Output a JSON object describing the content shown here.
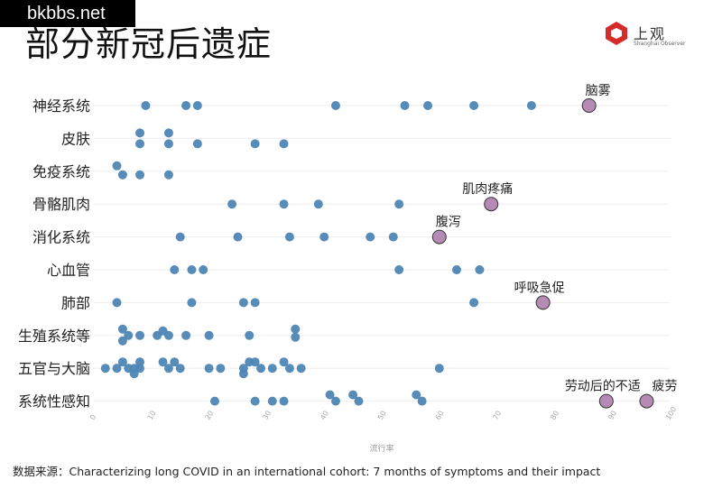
{
  "watermark": "bkbbs.net",
  "title": "部分新冠后遗症",
  "logo": {
    "name": "上观",
    "sub": "Shanghai Observer"
  },
  "source": "数据来源：Characterizing long COVID in an international cohort: 7 months of symptoms and their impact",
  "colors": {
    "point": "#4e86b5",
    "highlight": "#b58ab5",
    "grid": "#eeeeee",
    "logo_red": "#d52b2b"
  },
  "chart_data": {
    "type": "scatter",
    "xlabel": "流行率",
    "xlim": [
      0,
      100
    ],
    "xticks": [
      0,
      10,
      20,
      30,
      40,
      50,
      60,
      70,
      80,
      90,
      100
    ],
    "grid": true,
    "categories": [
      "神经系统",
      "皮肤",
      "免疫系统",
      "骨骼肌肉",
      "消化系统",
      "心血管",
      "肺部",
      "生殖系统等",
      "五官与大脑",
      "系统性感知"
    ],
    "points": [
      {
        "cat": "神经系统",
        "rows": [
          [
            9,
            0
          ],
          [
            16,
            0
          ],
          [
            18,
            0
          ],
          [
            42,
            0
          ],
          [
            54,
            0
          ],
          [
            58,
            0
          ],
          [
            66,
            0
          ],
          [
            76,
            0
          ]
        ]
      },
      {
        "cat": "皮肤",
        "rows": [
          [
            8,
            -0.3
          ],
          [
            8,
            0.3
          ],
          [
            13,
            -0.3
          ],
          [
            13,
            0.3
          ],
          [
            18,
            0.3
          ],
          [
            28,
            0.3
          ],
          [
            33,
            0.3
          ]
        ]
      },
      {
        "cat": "免疫系统",
        "rows": [
          [
            4,
            -0.3
          ],
          [
            5,
            0.2
          ],
          [
            8,
            0.2
          ],
          [
            13,
            0.2
          ]
        ]
      },
      {
        "cat": "骨骼肌肉",
        "rows": [
          [
            24,
            0
          ],
          [
            33,
            0
          ],
          [
            39,
            0
          ],
          [
            53,
            0
          ]
        ]
      },
      {
        "cat": "消化系统",
        "rows": [
          [
            15,
            0
          ],
          [
            25,
            0
          ],
          [
            34,
            0
          ],
          [
            40,
            0
          ],
          [
            48,
            0
          ],
          [
            52,
            0
          ]
        ]
      },
      {
        "cat": "心血管",
        "rows": [
          [
            14,
            0
          ],
          [
            17,
            0
          ],
          [
            19,
            0
          ],
          [
            53,
            0
          ],
          [
            63,
            0
          ],
          [
            67,
            0
          ]
        ]
      },
      {
        "cat": "肺部",
        "rows": [
          [
            4,
            0
          ],
          [
            17,
            0
          ],
          [
            26,
            0
          ],
          [
            28,
            0
          ],
          [
            66,
            0
          ]
        ]
      },
      {
        "cat": "生殖系统等",
        "rows": [
          [
            5,
            -0.35
          ],
          [
            5,
            0.3
          ],
          [
            6,
            0
          ],
          [
            8,
            0
          ],
          [
            12,
            -0.25
          ],
          [
            11,
            0
          ],
          [
            13,
            0
          ],
          [
            16,
            0
          ],
          [
            20,
            0
          ],
          [
            27,
            0
          ],
          [
            35,
            -0.35
          ],
          [
            35,
            0.1
          ]
        ]
      },
      {
        "cat": "五官与大脑",
        "rows": [
          [
            2,
            0
          ],
          [
            4,
            0
          ],
          [
            5,
            -0.35
          ],
          [
            6,
            0
          ],
          [
            7,
            0.3
          ],
          [
            8,
            -0.35
          ],
          [
            8,
            0
          ],
          [
            7,
            0
          ],
          [
            12,
            -0.35
          ],
          [
            13,
            0
          ],
          [
            14,
            -0.35
          ],
          [
            15,
            0
          ],
          [
            20,
            0
          ],
          [
            22,
            0
          ],
          [
            26,
            0
          ],
          [
            27,
            -0.35
          ],
          [
            26,
            0.3
          ],
          [
            28,
            -0.35
          ],
          [
            29,
            0
          ],
          [
            31,
            0
          ],
          [
            33,
            -0.35
          ],
          [
            34,
            0
          ],
          [
            36,
            0
          ],
          [
            60,
            0
          ]
        ]
      },
      {
        "cat": "系统性感知",
        "rows": [
          [
            21,
            0
          ],
          [
            28,
            0
          ],
          [
            31,
            0
          ],
          [
            33,
            0
          ],
          [
            41,
            -0.35
          ],
          [
            42,
            0
          ],
          [
            45,
            -0.35
          ],
          [
            46,
            0
          ],
          [
            56,
            -0.35
          ],
          [
            57,
            0
          ]
        ]
      }
    ],
    "highlights": [
      {
        "cat": "神经系统",
        "value": 86,
        "label": "脑雾"
      },
      {
        "cat": "骨骼肌肉",
        "value": 69,
        "label": "肌肉疼痛"
      },
      {
        "cat": "消化系统",
        "value": 60,
        "label": "腹泻"
      },
      {
        "cat": "肺部",
        "value": 78,
        "label": "呼吸急促"
      },
      {
        "cat": "系统性感知",
        "value": 89,
        "label": "劳动后的不适"
      },
      {
        "cat": "系统性感知",
        "value": 96,
        "label": "疲劳"
      }
    ]
  }
}
